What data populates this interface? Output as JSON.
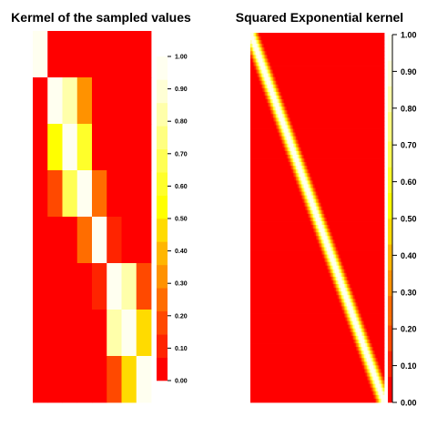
{
  "chart_data": [
    {
      "type": "heatmap",
      "title": "Kermel of the sampled values",
      "xlabel": "",
      "ylabel": "",
      "grid": false,
      "legend_placement": "right",
      "matrix": [
        [
          1.0,
          0.0,
          0.0,
          0.0,
          0.0,
          0.0,
          0.0,
          0.0
        ],
        [
          0.0,
          0.97,
          0.85,
          0.3,
          0.0,
          0.0,
          0.0,
          0.0
        ],
        [
          0.0,
          0.5,
          0.97,
          0.62,
          0.0,
          0.0,
          0.0,
          0.0
        ],
        [
          0.0,
          0.2,
          0.7,
          0.95,
          0.25,
          0.0,
          0.0,
          0.0
        ],
        [
          0.0,
          0.0,
          0.0,
          0.25,
          0.97,
          0.1,
          0.0,
          0.0
        ],
        [
          0.0,
          0.0,
          0.0,
          0.0,
          0.1,
          0.97,
          0.8,
          0.15
        ],
        [
          0.0,
          0.0,
          0.0,
          0.0,
          0.0,
          0.8,
          0.95,
          0.45
        ],
        [
          0.0,
          0.0,
          0.0,
          0.0,
          0.0,
          0.15,
          0.45,
          0.98
        ]
      ],
      "colorbar": {
        "levels": 14,
        "ticks": [
          "0.00",
          "0.10",
          "0.20",
          "0.30",
          "0.40",
          "0.50",
          "0.60",
          "0.70",
          "0.80",
          "0.90",
          "1.00"
        ]
      }
    },
    {
      "type": "heatmap",
      "title": "Squared Exponential kernel",
      "xlabel": "",
      "ylabel": "",
      "grid": false,
      "legend_placement": "right",
      "kernel": "squared-exponential",
      "colorbar": {
        "ticks": [
          "0.00",
          "0.10",
          "0.20",
          "0.30",
          "0.40",
          "0.50",
          "0.60",
          "0.70",
          "0.80",
          "0.90",
          "1.00"
        ]
      }
    }
  ],
  "palette": [
    "#FF0000",
    "#FF2400",
    "#FF4900",
    "#FF6D00",
    "#FF9200",
    "#FFB600",
    "#FFDB00",
    "#FFFF00",
    "#FFFF2A",
    "#FFFF55",
    "#FFFF80",
    "#FFFFAA",
    "#FFFFD5",
    "#FFFFF0"
  ]
}
